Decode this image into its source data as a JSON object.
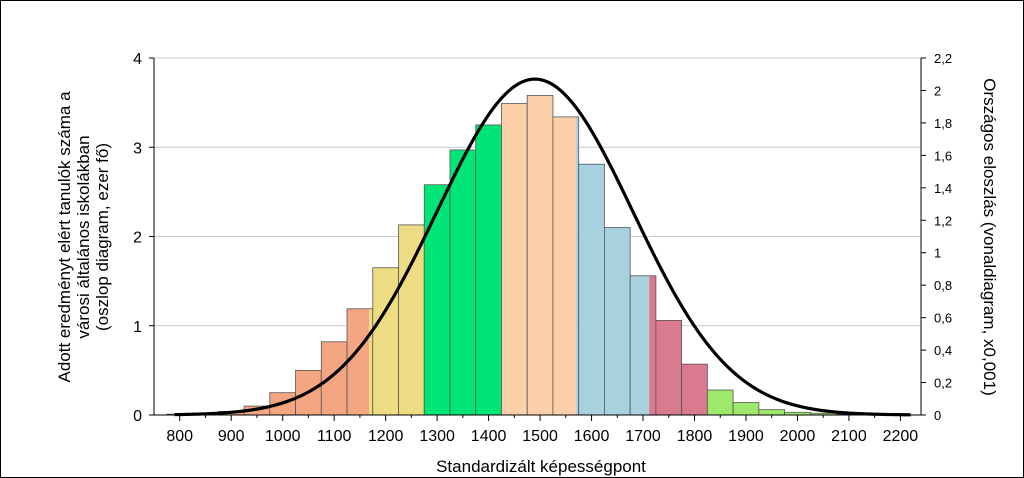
{
  "chart_data": {
    "type": "bar",
    "xlabel": "Standardizált képességpont",
    "ylabel_left_lines": [
      "Adott eredményt elért tanulók száma a",
      "városi általános iskolákban",
      "(oszlop diagram, ezer fő)"
    ],
    "ylabel_right": "Országos eloszlás (vonaldiagram, x0,001)",
    "x_ticks": [
      "800",
      "900",
      "1000",
      "1100",
      "1200",
      "1300",
      "1400",
      "1500",
      "1600",
      "1700",
      "1800",
      "1900",
      "2000",
      "2100",
      "2200"
    ],
    "x_tick_values": [
      800,
      900,
      1000,
      1100,
      1200,
      1300,
      1400,
      1500,
      1600,
      1700,
      1800,
      1900,
      2000,
      2100,
      2200
    ],
    "xlim": [
      750,
      2240
    ],
    "y_left_ticks": [
      "0",
      "1",
      "2",
      "3",
      "4"
    ],
    "y_left_values": [
      0,
      1,
      2,
      3,
      4
    ],
    "ylim_left": [
      0,
      4
    ],
    "y_right_ticks": [
      "0",
      "0,2",
      "0,4",
      "0,6",
      "0,8",
      "1",
      "1,2",
      "1,4",
      "1,6",
      "1,8",
      "2",
      "2,2"
    ],
    "y_right_values": [
      0,
      0.2,
      0.4,
      0.6,
      0.8,
      1.0,
      1.2,
      1.4,
      1.6,
      1.8,
      2.0,
      2.2
    ],
    "ylim_right": [
      0,
      2.2
    ],
    "grid": "horizontal",
    "bar_width": 50,
    "bars": [
      {
        "x": 800,
        "value": 0.01,
        "color": "#f4a582"
      },
      {
        "x": 850,
        "value": 0.02,
        "color": "#f4a582"
      },
      {
        "x": 900,
        "value": 0.04,
        "color": "#f4a582"
      },
      {
        "x": 950,
        "value": 0.1,
        "color": "#f4a582"
      },
      {
        "x": 1000,
        "value": 0.25,
        "color": "#f4a582"
      },
      {
        "x": 1050,
        "value": 0.5,
        "color": "#f4a582"
      },
      {
        "x": 1100,
        "value": 0.82,
        "color": "#f4a582"
      },
      {
        "x": 1150,
        "value": 1.19,
        "color": "#f4a582",
        "split": {
          "at": 1168,
          "right_color": "#eedc82"
        }
      },
      {
        "x": 1200,
        "value": 1.65,
        "color": "#eedc82"
      },
      {
        "x": 1250,
        "value": 2.13,
        "color": "#eedc82"
      },
      {
        "x": 1300,
        "value": 2.58,
        "color": "#00e676"
      },
      {
        "x": 1350,
        "value": 2.97,
        "color": "#00e676"
      },
      {
        "x": 1400,
        "value": 3.25,
        "color": "#00e676"
      },
      {
        "x": 1450,
        "value": 3.49,
        "color": "#fbd0a8"
      },
      {
        "x": 1500,
        "value": 3.58,
        "color": "#fbd0a8"
      },
      {
        "x": 1550,
        "value": 3.34,
        "color": "#fbd0a8",
        "split": {
          "at": 1570,
          "right_color": "#a8d1e0"
        }
      },
      {
        "x": 1600,
        "value": 2.81,
        "color": "#a8d1e0"
      },
      {
        "x": 1650,
        "value": 2.1,
        "color": "#a8d1e0"
      },
      {
        "x": 1700,
        "value": 1.56,
        "color": "#d97a8f",
        "split": {
          "at": 1712,
          "left_color": "#a8d1e0"
        }
      },
      {
        "x": 1750,
        "value": 1.06,
        "color": "#d97a8f"
      },
      {
        "x": 1800,
        "value": 0.57,
        "color": "#d97a8f"
      },
      {
        "x": 1850,
        "value": 0.28,
        "color": "#9ee86b"
      },
      {
        "x": 1900,
        "value": 0.14,
        "color": "#9ee86b"
      },
      {
        "x": 1950,
        "value": 0.06,
        "color": "#9ee86b"
      },
      {
        "x": 2000,
        "value": 0.03,
        "color": "#9ee86b"
      },
      {
        "x": 2050,
        "value": 0.02,
        "color": "#9ee86b"
      },
      {
        "x": 2100,
        "value": 0.01,
        "color": "#9ee86b"
      }
    ],
    "line": {
      "axis": "right",
      "type": "normal",
      "mean": 1490,
      "sd": 190,
      "peak": 2.07,
      "x_range": [
        790,
        2220
      ],
      "color": "#000000"
    }
  }
}
